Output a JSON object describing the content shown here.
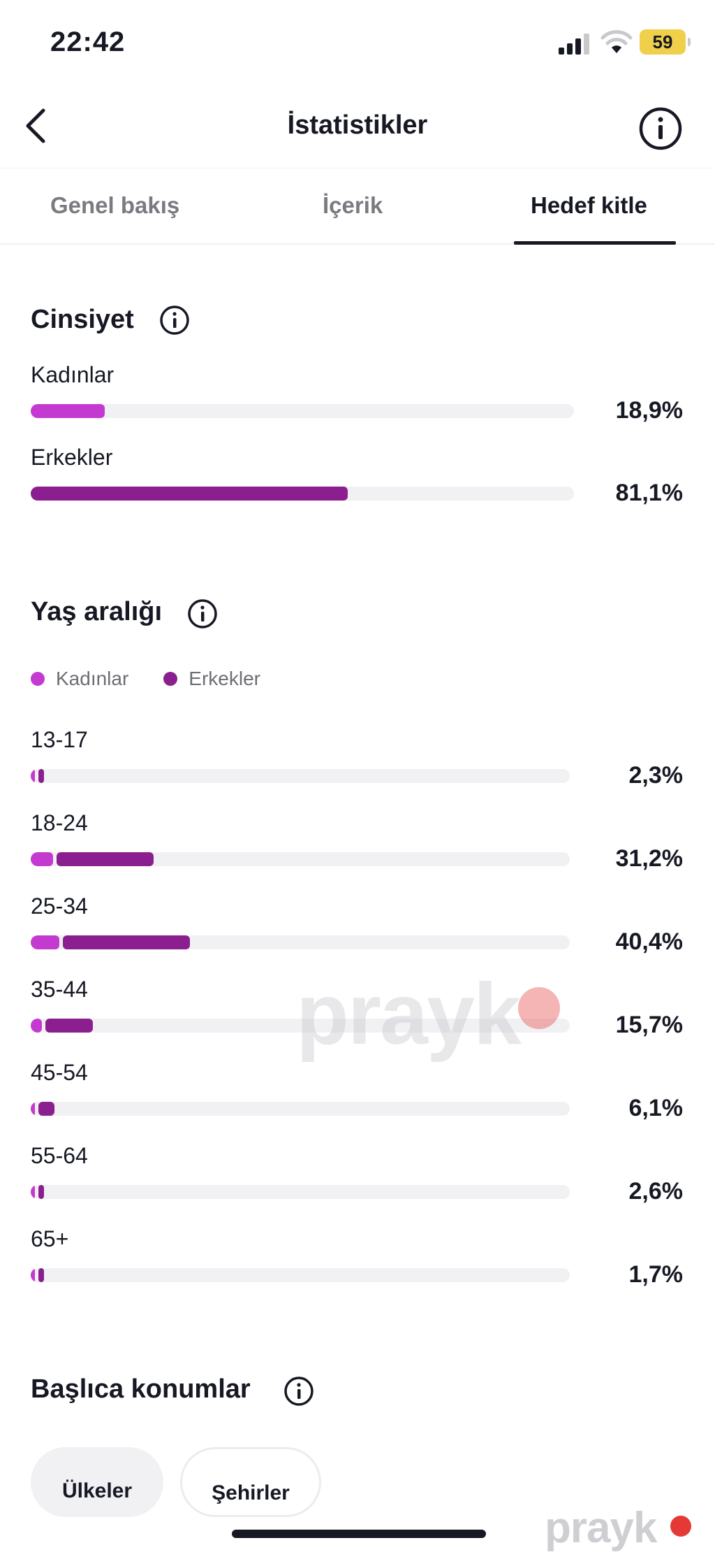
{
  "status_bar": {
    "time": "22:42",
    "battery": "59"
  },
  "header": {
    "title": "İstatistikler"
  },
  "tabs": [
    {
      "label": "Genel bakış",
      "active": false
    },
    {
      "label": "İçerik",
      "active": false
    },
    {
      "label": "Hedef kitle",
      "active": true
    }
  ],
  "gender": {
    "title": "Cinsiyet",
    "rows": [
      {
        "label": "Kadınlar",
        "value": "18,9%",
        "fraction": 0.189
      },
      {
        "label": "Erkekler",
        "value": "81,1%",
        "fraction": 0.811
      }
    ]
  },
  "age": {
    "title": "Yaş aralığı",
    "legend": [
      {
        "label": "Kadınlar",
        "color": "#c43ad1"
      },
      {
        "label": "Erkekler",
        "color": "#8b1f8f"
      }
    ],
    "rows": [
      {
        "label": "13-17",
        "value": "2,3%",
        "percent": 2.3
      },
      {
        "label": "18-24",
        "value": "31,2%",
        "percent": 31.2
      },
      {
        "label": "25-34",
        "value": "40,4%",
        "percent": 40.4
      },
      {
        "label": "35-44",
        "value": "15,7%",
        "percent": 15.7
      },
      {
        "label": "45-54",
        "value": "6,1%",
        "percent": 6.1
      },
      {
        "label": "55-64",
        "value": "2,6%",
        "percent": 2.6
      },
      {
        "label": "65+",
        "value": "1,7%",
        "percent": 1.7
      }
    ]
  },
  "locations": {
    "title": "Başlıca konumlar",
    "chips": [
      {
        "label": "Ülkeler",
        "selected": true
      },
      {
        "label": "Şehirler",
        "selected": false
      }
    ]
  },
  "watermark": {
    "text": "prayk"
  },
  "colors": {
    "women": "#c43ad1",
    "men": "#8b1f8f",
    "track": "#f1f1f4",
    "battery": "#f0d04a"
  }
}
